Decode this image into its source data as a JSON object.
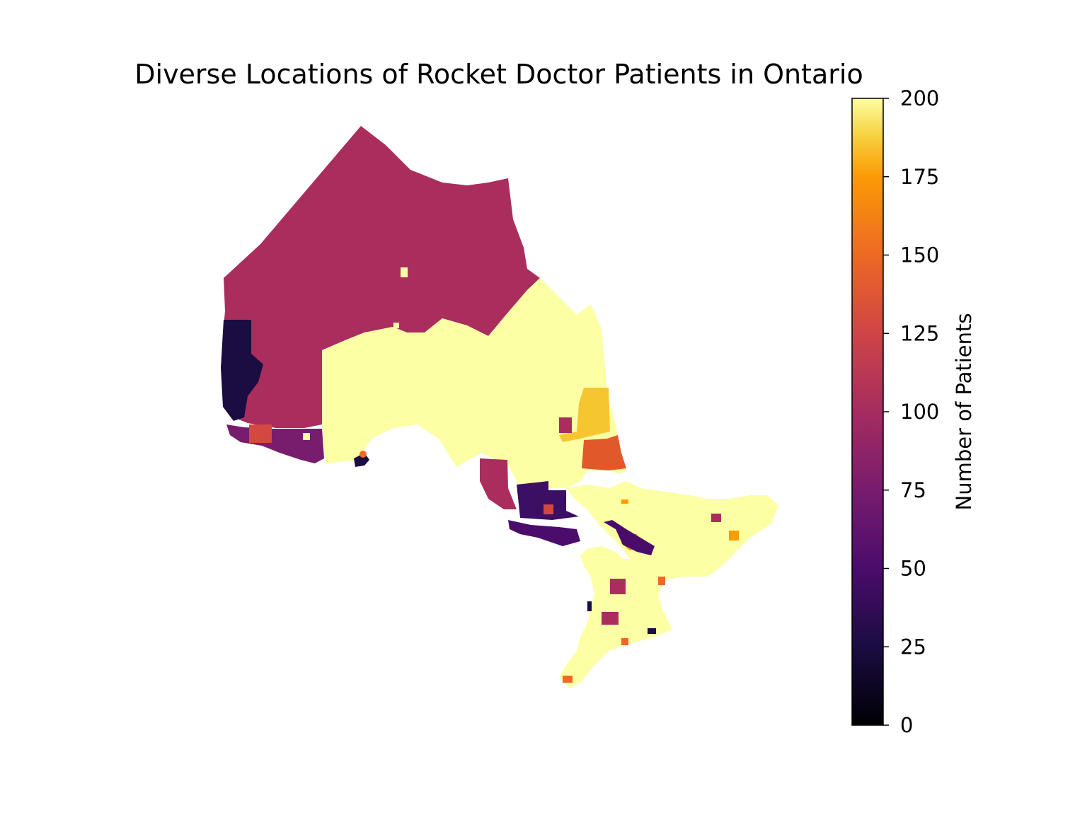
{
  "title": "Diverse Locations of Rocket Doctor Patients in Ontario",
  "colorbar": {
    "label": "Number of Patients",
    "colormap": "inferno",
    "min": 0,
    "max": 200,
    "ticks": [
      "0",
      "25",
      "50",
      "75",
      "100",
      "125",
      "150",
      "175",
      "200"
    ],
    "tick_values": [
      0,
      25,
      50,
      75,
      100,
      125,
      150,
      175,
      200
    ]
  },
  "map": {
    "region": "Ontario",
    "legend_placement": "right",
    "colors": {
      "north_region": "#a92e5e",
      "northeast_region": "#fcffa4",
      "northwest_district": "#1b0c41",
      "southern_region": "#fcffa4",
      "yellow_patch": "#f6c631",
      "orange_patch": "#e1582b",
      "purple_patch": "#380b5c",
      "red_patch": "#d44842",
      "magenta_patch": "#6d1c6f"
    }
  }
}
